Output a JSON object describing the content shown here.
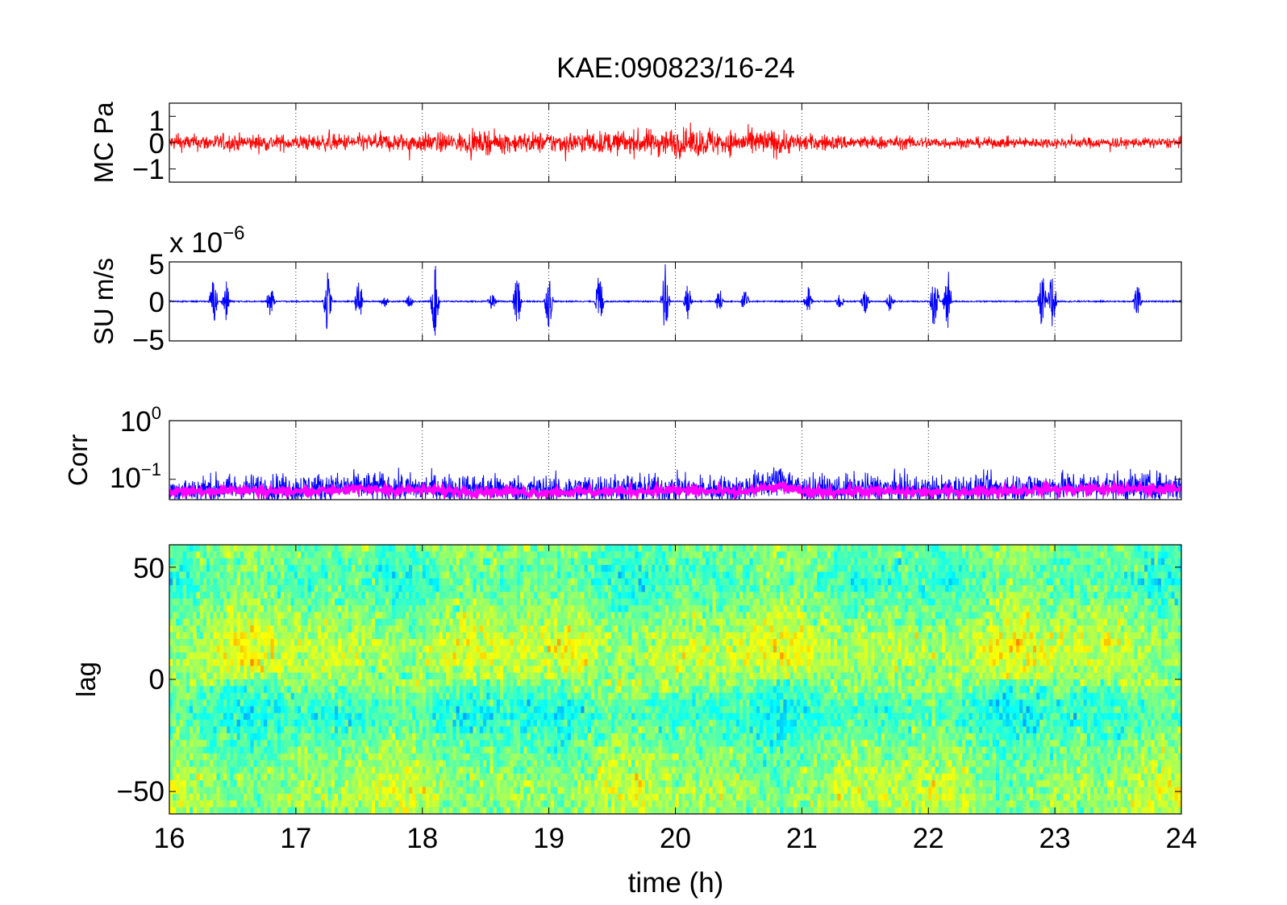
{
  "figure": {
    "title": "KAE:090823/16-24",
    "xlabel": "time (h)"
  },
  "chart_data": [
    {
      "type": "line",
      "panel": "MC Pa",
      "ylabel": "MC Pa",
      "xlim": [
        16,
        24
      ],
      "ylim": [
        -1.5,
        1.5
      ],
      "xticks": [
        16,
        17,
        18,
        19,
        20,
        21,
        22,
        23,
        24
      ],
      "yticks": [
        {
          "value": 1,
          "label": "1"
        },
        {
          "value": 0,
          "label": "0"
        },
        {
          "value": -1,
          "label": "−1"
        }
      ],
      "grid": "x-dotted",
      "color": "#ff0000",
      "envelope": {
        "x": [
          16,
          16.5,
          17,
          17.5,
          18,
          18.5,
          19,
          19.5,
          20,
          20.5,
          20.8,
          21,
          21.5,
          22,
          22.5,
          23,
          23.5,
          24
        ],
        "amplitude": [
          0.45,
          0.5,
          0.45,
          0.5,
          0.55,
          0.6,
          0.6,
          0.65,
          0.85,
          0.7,
          0.8,
          0.5,
          0.4,
          0.35,
          0.3,
          0.3,
          0.3,
          0.3
        ]
      }
    },
    {
      "type": "line",
      "panel": "SU m/s",
      "ylabel": "SU m/s",
      "multiplier": "x 10",
      "multiplier_exponent": "−6",
      "xlim": [
        16,
        24
      ],
      "ylim": [
        -5,
        5
      ],
      "xticks": [
        16,
        17,
        18,
        19,
        20,
        21,
        22,
        23,
        24
      ],
      "yticks": [
        {
          "value": 5,
          "label": "5"
        },
        {
          "value": 0,
          "label": "0"
        },
        {
          "value": -5,
          "label": "−5"
        }
      ],
      "grid": "x-dotted",
      "color": "#0000ff",
      "bursts": [
        {
          "t": 16.35,
          "amp": 3.5
        },
        {
          "t": 16.45,
          "amp": 2.6
        },
        {
          "t": 16.8,
          "amp": 2.2
        },
        {
          "t": 17.25,
          "amp": 4.2
        },
        {
          "t": 17.5,
          "amp": 3.2
        },
        {
          "t": 17.7,
          "amp": 0.8
        },
        {
          "t": 17.9,
          "amp": 0.9
        },
        {
          "t": 18.1,
          "amp": 5.0
        },
        {
          "t": 18.55,
          "amp": 1.2
        },
        {
          "t": 18.75,
          "amp": 3.9
        },
        {
          "t": 19.0,
          "amp": 3.8
        },
        {
          "t": 19.4,
          "amp": 4.2
        },
        {
          "t": 19.92,
          "amp": 5.0
        },
        {
          "t": 20.1,
          "amp": 2.6
        },
        {
          "t": 20.35,
          "amp": 1.8
        },
        {
          "t": 20.55,
          "amp": 1.6
        },
        {
          "t": 21.05,
          "amp": 2.1
        },
        {
          "t": 21.3,
          "amp": 1.2
        },
        {
          "t": 21.5,
          "amp": 1.6
        },
        {
          "t": 21.7,
          "amp": 1.6
        },
        {
          "t": 22.05,
          "amp": 4.8
        },
        {
          "t": 22.15,
          "amp": 5.0
        },
        {
          "t": 22.9,
          "amp": 4.0
        },
        {
          "t": 22.98,
          "amp": 5.0
        },
        {
          "t": 23.65,
          "amp": 2.5
        }
      ]
    },
    {
      "type": "line",
      "panel": "Corr",
      "ylabel": "Corr",
      "yscale": "log",
      "xlim": [
        16,
        24
      ],
      "ylim": [
        0.045,
        1
      ],
      "xticks": [
        16,
        17,
        18,
        19,
        20,
        21,
        22,
        23,
        24
      ],
      "yticks": [
        {
          "value": 1,
          "base": "10",
          "exp": "0"
        },
        {
          "value": 0.1,
          "base": "10",
          "exp": "−1"
        }
      ],
      "grid": "x-dotted",
      "series": [
        {
          "color": "#0000ff",
          "x": [
            16,
            16.5,
            17,
            17.5,
            18,
            18.5,
            19,
            19.5,
            20,
            20.5,
            20.85,
            21,
            21.5,
            22,
            22.5,
            23,
            23.5,
            24
          ],
          "y": [
            0.065,
            0.07,
            0.07,
            0.075,
            0.07,
            0.07,
            0.065,
            0.07,
            0.07,
            0.065,
            0.1,
            0.065,
            0.07,
            0.065,
            0.07,
            0.075,
            0.075,
            0.075
          ]
        },
        {
          "color": "#ff00ff",
          "x": [
            16,
            16.5,
            17,
            17.5,
            18,
            18.5,
            19,
            19.5,
            20,
            20.5,
            20.85,
            21,
            21.5,
            22,
            22.5,
            23,
            23.5,
            24
          ],
          "y": [
            0.062,
            0.065,
            0.062,
            0.068,
            0.065,
            0.062,
            0.06,
            0.062,
            0.065,
            0.06,
            0.075,
            0.06,
            0.063,
            0.06,
            0.063,
            0.068,
            0.068,
            0.068
          ]
        }
      ]
    },
    {
      "type": "heatmap",
      "panel": "lag",
      "ylabel": "lag",
      "xlim": [
        16,
        24
      ],
      "ylim": [
        -60,
        60
      ],
      "xticks": [
        16,
        17,
        18,
        19,
        20,
        21,
        22,
        23,
        24
      ],
      "yticks": [
        {
          "value": 50,
          "label": "50"
        },
        {
          "value": 0,
          "label": "0"
        },
        {
          "value": -50,
          "label": "−50"
        }
      ],
      "colormap": "jet"
    }
  ]
}
